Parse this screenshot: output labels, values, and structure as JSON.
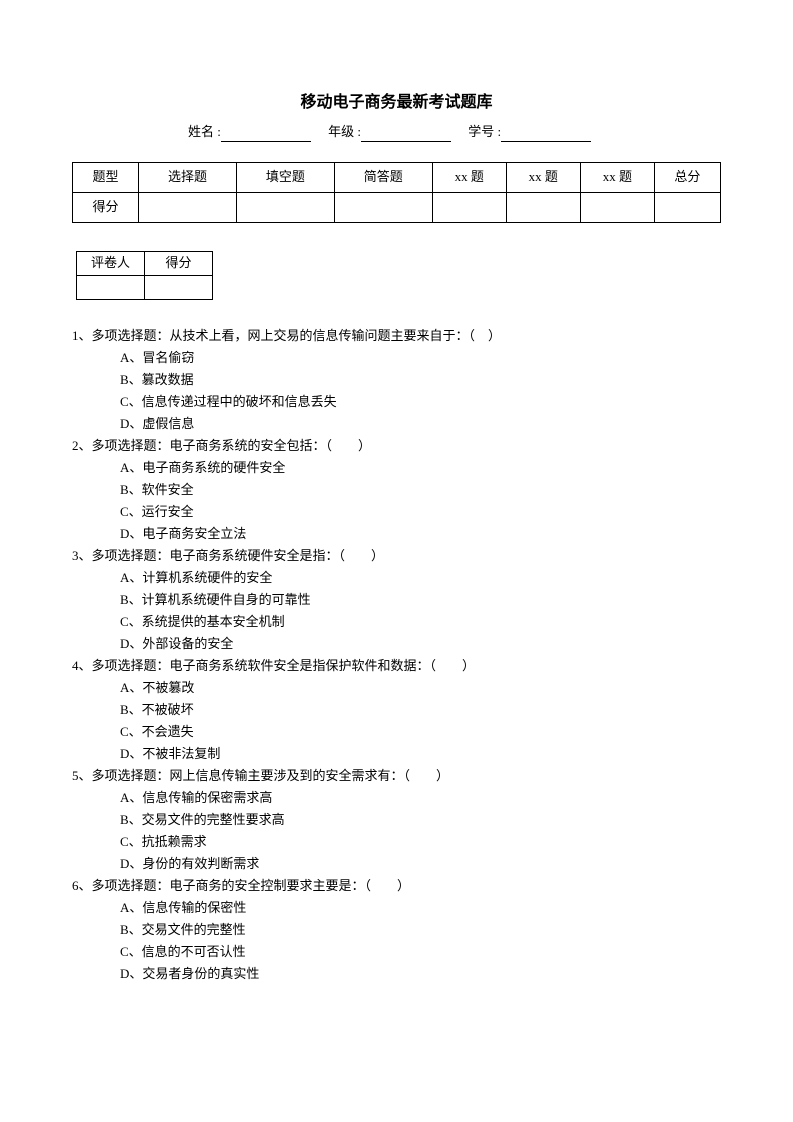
{
  "title": "移动电子商务最新考试题库",
  "info": {
    "name_label": "姓名 :",
    "grade_label": "年级 :",
    "id_label": "学号 :"
  },
  "score_table": {
    "row1": [
      "题型",
      "选择题",
      "填空题",
      "简答题",
      "xx 题",
      "xx 题",
      "xx 题",
      "总分"
    ],
    "row2_label": "得分"
  },
  "grader_table": {
    "header": [
      "评卷人",
      "得分"
    ]
  },
  "questions": [
    {
      "stem": "1、多项选择题：从技术上看，网上交易的信息传输问题主要来自于：（　）",
      "options": [
        "A、冒名偷窃",
        "B、篡改数据",
        "C、信息传递过程中的破坏和信息丢失",
        "D、虚假信息"
      ]
    },
    {
      "stem": "2、多项选择题：电子商务系统的安全包括：（　　）",
      "options": [
        "A、电子商务系统的硬件安全",
        "B、软件安全",
        "C、运行安全",
        "D、电子商务安全立法"
      ]
    },
    {
      "stem": "3、多项选择题：电子商务系统硬件安全是指：（　　）",
      "options": [
        "A、计算机系统硬件的安全",
        "B、计算机系统硬件自身的可靠性",
        "C、系统提供的基本安全机制",
        "D、外部设备的安全"
      ]
    },
    {
      "stem": "4、多项选择题：电子商务系统软件安全是指保护软件和数据：（　　）",
      "options": [
        "A、不被篡改",
        "B、不被破坏",
        "C、不会遗失",
        "D、不被非法复制"
      ]
    },
    {
      "stem": "5、多项选择题：网上信息传输主要涉及到的安全需求有：（　　）",
      "options": [
        "A、信息传输的保密需求高",
        "B、交易文件的完整性要求高",
        "C、抗抵赖需求",
        "D、身份的有效判断需求"
      ]
    },
    {
      "stem": "6、多项选择题：电子商务的安全控制要求主要是：（　　）",
      "options": [
        "A、信息传输的保密性",
        "B、交易文件的完整性",
        "C、信息的不可否认性",
        "D、交易者身份的真实性"
      ]
    }
  ]
}
